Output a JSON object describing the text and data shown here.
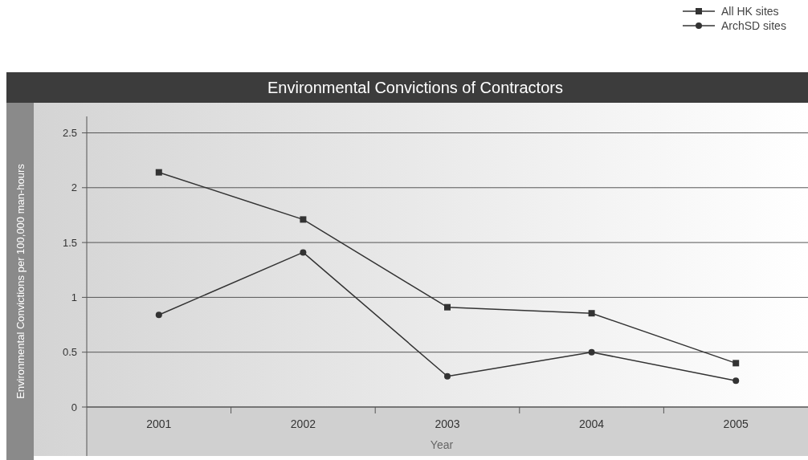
{
  "chart_data": {
    "type": "line",
    "title": "Environmental Convictions of Contractors",
    "xlabel": "Year",
    "ylabel": "Environmental Convictions per 100,000 man-hours",
    "categories": [
      "2001",
      "2002",
      "2003",
      "2004",
      "2005"
    ],
    "series": [
      {
        "name": "All HK sites",
        "color": "#333333",
        "marker": "square",
        "values": [
          2.14,
          1.71,
          0.91,
          0.855,
          0.4
        ]
      },
      {
        "name": "ArchSD sites",
        "color": "#333333",
        "marker": "circle",
        "values": [
          0.84,
          1.41,
          0.28,
          0.5,
          0.24
        ]
      }
    ],
    "ylim": [
      0,
      2.65
    ],
    "yticks": [
      0,
      0.5,
      1,
      1.5,
      2,
      2.5
    ],
    "grid": "y",
    "legend": "top right",
    "line_style": "solid"
  }
}
